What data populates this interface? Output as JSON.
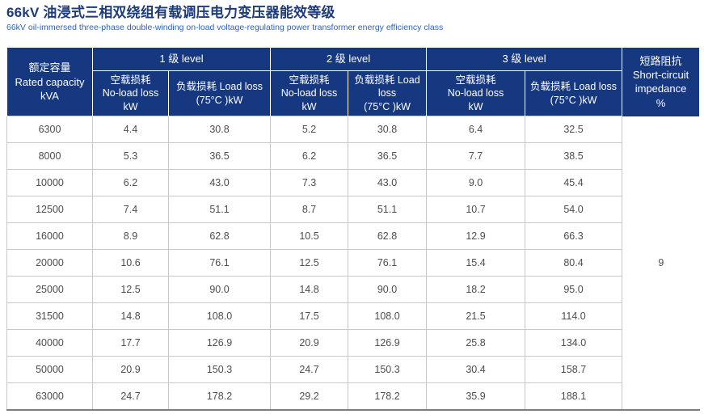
{
  "page": {
    "title": "66kV 油浸式三相双绕组有载调压电力变压器能效等级",
    "subtitle": "66kV oil-immersed three-phase double-winding on-load voltage-regulating power transformer energy efficiency class"
  },
  "colors": {
    "header_bg": "#163880",
    "title_text": "#1d3b79",
    "subtitle_text": "#2f63ae",
    "data_text": "#4d4d4d",
    "grid_line": "#c8c8c8",
    "table_bottom_border": "#7d7d7d"
  },
  "table": {
    "rated_capacity_header": "额定容量\nRated capacity\nkVA",
    "groups": [
      {
        "label": "1 级 level"
      },
      {
        "label": "2 级 level"
      },
      {
        "label": "3 级 level"
      }
    ],
    "subheaders": [
      "空载损耗\nNo-load loss\nkW",
      "负载损耗 Load loss\n(75°C )kW",
      "空载损耗\nNo-load loss\nkW",
      "负载损耗 Load\nloss\n(75°C )kW",
      "空载损耗\nNo-load loss\nkW",
      "负载损耗 Load loss\n(75°C )kW"
    ],
    "impedance_header": "短路阻抗\nShort-circuit\nimpedance\n%",
    "impedance_value": "9",
    "column_keys": [
      "rated_capacity_kva",
      "level1_no_load_loss_kw",
      "level1_load_loss_kw",
      "level2_no_load_loss_kw",
      "level2_load_loss_kw",
      "level3_no_load_loss_kw",
      "level3_load_loss_kw"
    ],
    "rows": [
      [
        "6300",
        "4.4",
        "30.8",
        "5.2",
        "30.8",
        "6.4",
        "32.5"
      ],
      [
        "8000",
        "5.3",
        "36.5",
        "6.2",
        "36.5",
        "7.7",
        "38.5"
      ],
      [
        "10000",
        "6.2",
        "43.0",
        "7.3",
        "43.0",
        "9.0",
        "45.4"
      ],
      [
        "12500",
        "7.4",
        "51.1",
        "8.7",
        "51.1",
        "10.7",
        "54.0"
      ],
      [
        "16000",
        "8.9",
        "62.8",
        "10.5",
        "62.8",
        "12.9",
        "66.3"
      ],
      [
        "20000",
        "10.6",
        "76.1",
        "12.5",
        "76.1",
        "15.4",
        "80.4"
      ],
      [
        "25000",
        "12.5",
        "90.0",
        "14.8",
        "90.0",
        "18.2",
        "95.0"
      ],
      [
        "31500",
        "14.8",
        "108.0",
        "17.5",
        "108.0",
        "21.5",
        "114.0"
      ],
      [
        "40000",
        "17.7",
        "126.9",
        "20.9",
        "126.9",
        "25.8",
        "134.0"
      ],
      [
        "50000",
        "20.9",
        "150.3",
        "24.7",
        "150.3",
        "30.4",
        "158.7"
      ],
      [
        "63000",
        "24.7",
        "178.2",
        "29.2",
        "178.2",
        "35.9",
        "188.1"
      ]
    ]
  }
}
